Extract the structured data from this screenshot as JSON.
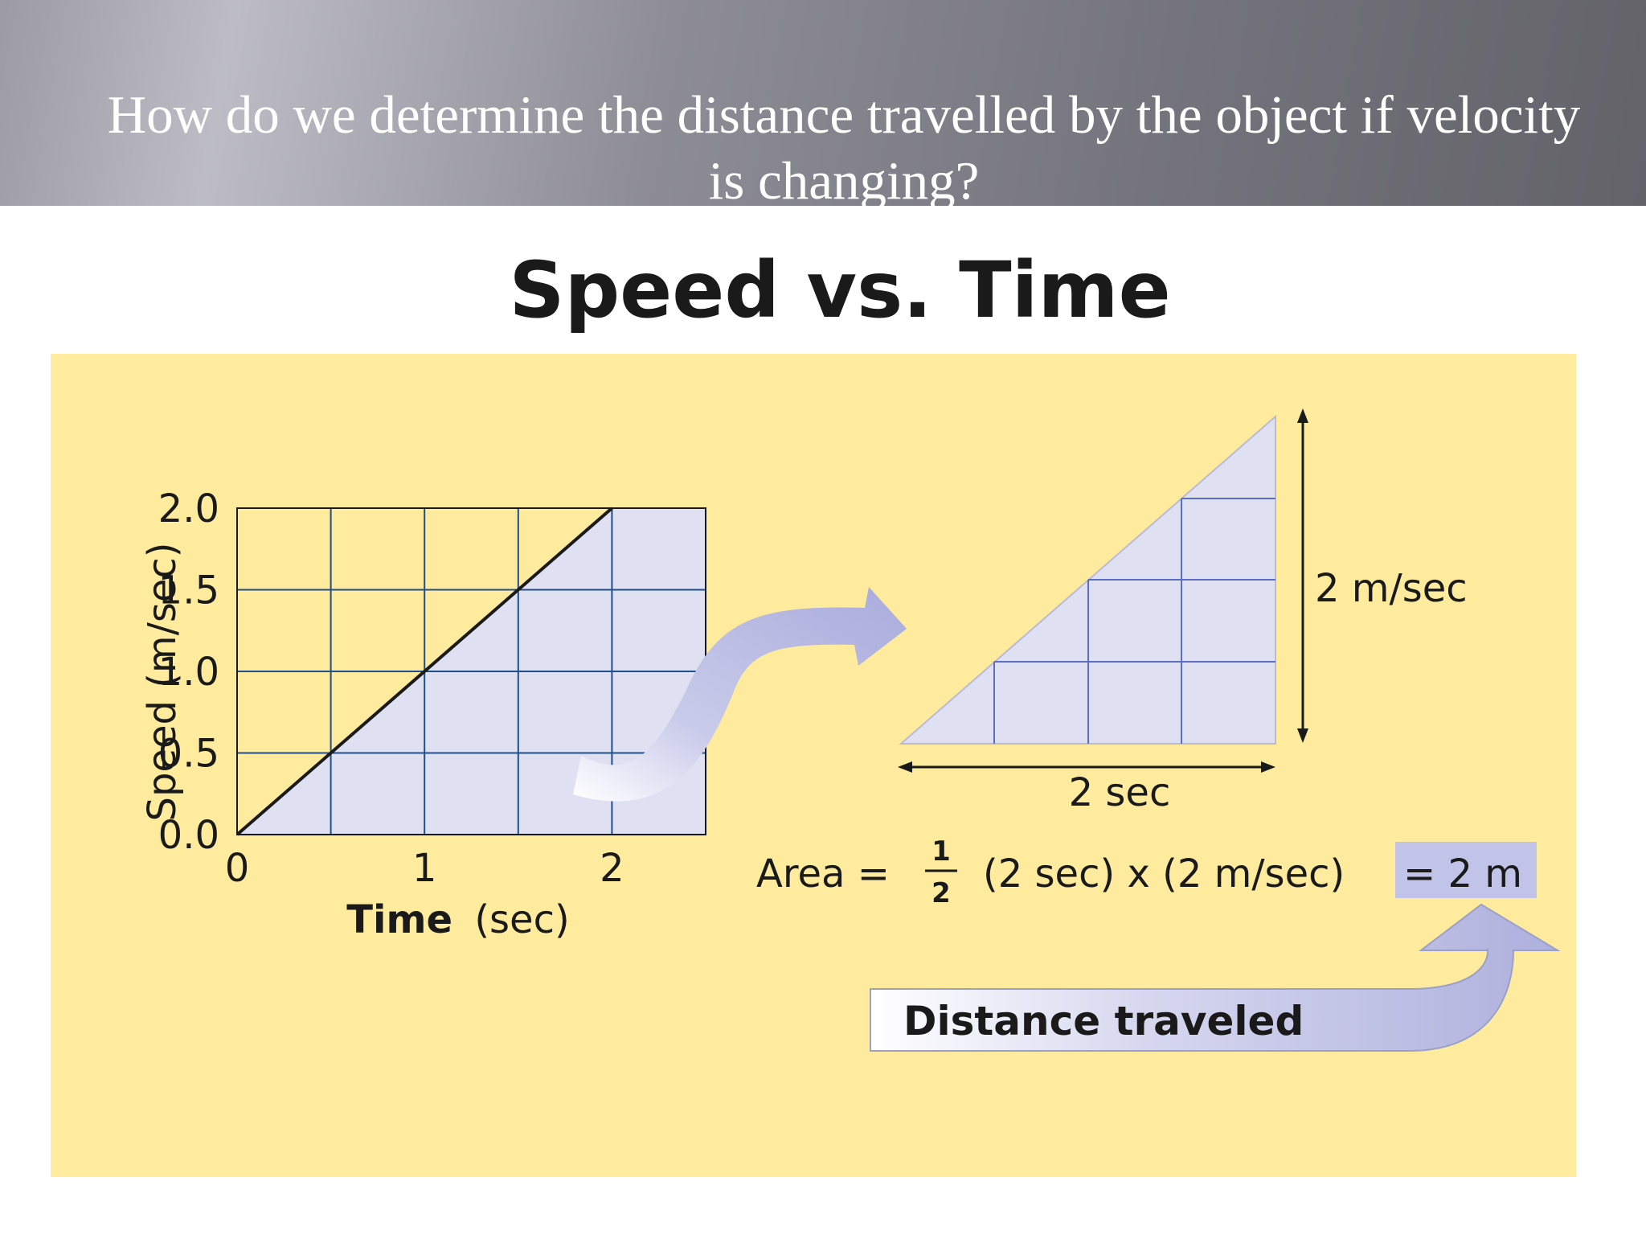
{
  "header": {
    "question": "How do we determine the distance travelled by the object if velocity is changing?"
  },
  "slide_title": "Speed vs. Time",
  "chart_data": {
    "type": "line",
    "title": "",
    "xlabel_bold": "Time",
    "xlabel_unit": "(sec)",
    "ylabel": "Speed (m/sec)",
    "x_ticks": [
      "0",
      "1",
      "2"
    ],
    "y_ticks": [
      "0.0",
      "0.5",
      "1.0",
      "1.5",
      "2.0"
    ],
    "xlim": [
      0,
      2.5
    ],
    "ylim": [
      0,
      2.0
    ],
    "grid": true,
    "shaded_area_under_line": true,
    "series": [
      {
        "x": [
          0,
          2
        ],
        "y": [
          0.0,
          2.0
        ]
      }
    ]
  },
  "triangle": {
    "height_label": "2 m/sec",
    "base_label": "2 sec"
  },
  "formula": {
    "lhs": "Area =",
    "numerator": "1",
    "denominator": "2",
    "expression": "(2 sec) x (2 m/sec)",
    "result": "= 2 m"
  },
  "callout": {
    "label": "Distance traveled"
  },
  "colors": {
    "panel_bg": "#feeb9d",
    "shade": "#e0e0f3",
    "grid_line": "#1f4e8c",
    "arrow": "#b4b5e0"
  }
}
